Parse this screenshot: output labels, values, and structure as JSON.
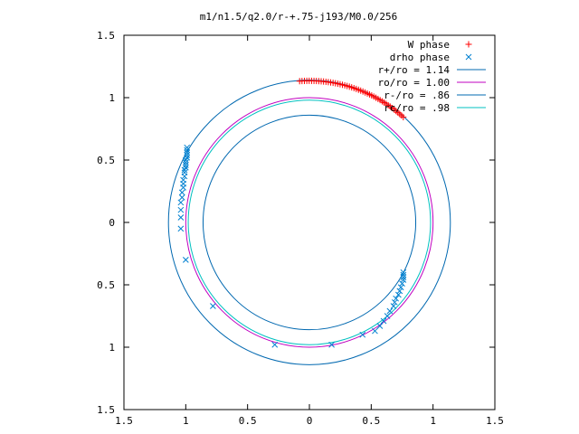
{
  "chart_data": {
    "type": "scatter",
    "title": "m1/n1.5/q2.0/r-+.75-j193/M0.0/256",
    "xlim": [
      -1.5,
      1.5
    ],
    "ylim": [
      -1.5,
      1.5
    ],
    "x_ticks": [
      -1.5,
      -1,
      -0.5,
      0,
      0.5,
      1,
      1.5
    ],
    "y_ticks": [
      -1.5,
      -1,
      -0.5,
      0,
      0.5,
      1,
      1.5
    ],
    "x_tick_labels": [
      "1.5",
      "1",
      "0.5",
      "0",
      "0.5",
      "1",
      "1.5"
    ],
    "y_tick_labels": [
      "1.5",
      "1",
      "0.5",
      "0",
      "0.5",
      "1",
      "1.5"
    ],
    "grid": false,
    "legend_position": "top-right",
    "colors": {
      "w_phase": "#ff0000",
      "drho_phase": "#0080d0",
      "r_plus": "#0068b0",
      "r_o": "#c000c0",
      "r_minus": "#0068b0",
      "r_c": "#00c0c0"
    },
    "legend": [
      {
        "key": "w_phase",
        "label": "W phase",
        "marker": "+"
      },
      {
        "key": "drho_phase",
        "label": "drho phase",
        "marker": "x"
      },
      {
        "key": "r_plus",
        "label": "r+/ro = 1.14",
        "marker": "line"
      },
      {
        "key": "r_o",
        "label": "ro/ro = 1.00",
        "marker": "line"
      },
      {
        "key": "r_minus",
        "label": "r-/ro = .86",
        "marker": "line"
      },
      {
        "key": "r_c",
        "label": "rc/ro = .98",
        "marker": "line"
      }
    ],
    "circles": [
      {
        "key": "r_plus",
        "radius": 1.14
      },
      {
        "key": "r_o",
        "radius": 1.0
      },
      {
        "key": "r_minus",
        "radius": 0.86
      },
      {
        "key": "r_c",
        "radius": 0.98
      }
    ],
    "w_phase_arc": {
      "radius": 1.135,
      "angle_start_deg": 94,
      "angle_end_deg": 48,
      "count": 48
    },
    "drho_points": [
      [
        -0.99,
        0.6
      ],
      [
        -0.99,
        0.58
      ],
      [
        -0.99,
        0.56
      ],
      [
        -0.99,
        0.54
      ],
      [
        -0.99,
        0.52
      ],
      [
        -1.0,
        0.5
      ],
      [
        -1.0,
        0.48
      ],
      [
        -1.0,
        0.46
      ],
      [
        -1.0,
        0.44
      ],
      [
        -1.01,
        0.42
      ],
      [
        -1.01,
        0.4
      ],
      [
        -1.01,
        0.37
      ],
      [
        -1.02,
        0.34
      ],
      [
        -1.02,
        0.31
      ],
      [
        -1.02,
        0.28
      ],
      [
        -1.03,
        0.24
      ],
      [
        -1.03,
        0.2
      ],
      [
        -1.04,
        0.16
      ],
      [
        -1.04,
        0.1
      ],
      [
        -1.04,
        0.04
      ],
      [
        -1.04,
        -0.05
      ],
      [
        -1.0,
        -0.3
      ],
      [
        -0.78,
        -0.67
      ],
      [
        -0.28,
        -0.98
      ],
      [
        0.18,
        -0.98
      ],
      [
        0.43,
        -0.9
      ],
      [
        0.53,
        -0.87
      ],
      [
        0.57,
        -0.83
      ],
      [
        0.6,
        -0.79
      ],
      [
        0.63,
        -0.75
      ],
      [
        0.65,
        -0.71
      ],
      [
        0.68,
        -0.67
      ],
      [
        0.69,
        -0.64
      ],
      [
        0.7,
        -0.61
      ],
      [
        0.72,
        -0.58
      ],
      [
        0.73,
        -0.55
      ],
      [
        0.74,
        -0.52
      ],
      [
        0.75,
        -0.49
      ],
      [
        0.76,
        -0.46
      ],
      [
        0.76,
        -0.44
      ],
      [
        0.76,
        -0.42
      ],
      [
        0.76,
        -0.4
      ]
    ]
  }
}
